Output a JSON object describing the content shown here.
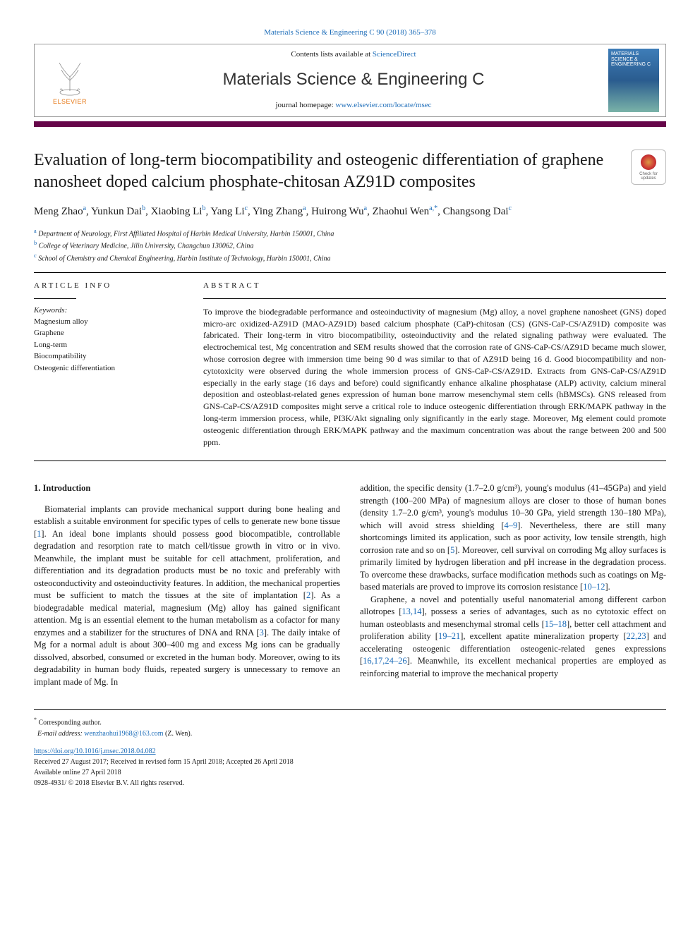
{
  "header": {
    "running_head": "Materials Science & Engineering C 90 (2018) 365–378",
    "contents_prefix": "Contents lists available at ",
    "contents_link": "ScienceDirect",
    "journal_name": "Materials Science & Engineering C",
    "homepage_prefix": "journal homepage: ",
    "homepage_link": "www.elsevier.com/locate/msec",
    "publisher_label": "ELSEVIER",
    "cover_text": "MATERIALS SCIENCE & ENGINEERING C",
    "brand_bar_color": "#66064a"
  },
  "check_updates": {
    "label": "Check for updates"
  },
  "title": "Evaluation of long-term biocompatibility and osteogenic differentiation of graphene nanosheet doped calcium phosphate-chitosan AZ91D composites",
  "authors_html": "Meng Zhao<sup>a</sup>, Yunkun Dai<sup>b</sup>, Xiaobing Li<sup>b</sup>, Yang Li<sup>c</sup>, Ying Zhang<sup>a</sup>, Huirong Wu<sup>a</sup>, Zhaohui Wen<sup>a,*</sup>, Changsong Dai<sup>c</sup>",
  "affiliations": [
    {
      "sup": "a",
      "text": "Department of Neurology, First Affiliated Hospital of Harbin Medical University, Harbin 150001, China"
    },
    {
      "sup": "b",
      "text": "College of Veterinary Medicine, Jilin University, Changchun 130062, China"
    },
    {
      "sup": "c",
      "text": "School of Chemistry and Chemical Engineering, Harbin Institute of Technology, Harbin 150001, China"
    }
  ],
  "article_info_head": "ARTICLE INFO",
  "abstract_head": "ABSTRACT",
  "keywords_label": "Keywords:",
  "keywords": [
    "Magnesium alloy",
    "Graphene",
    "Long-term",
    "Biocompatibility",
    "Osteogenic differentiation"
  ],
  "abstract_text": "To improve the biodegradable performance and osteoinductivity of magnesium (Mg) alloy, a novel graphene nanosheet (GNS) doped micro-arc oxidized-AZ91D (MAO-AZ91D) based calcium phosphate (CaP)-chitosan (CS) (GNS-CaP-CS/AZ91D) composite was fabricated. Their long-term in vitro biocompatibility, osteoinductivity and the related signaling pathway were evaluated. The electrochemical test, Mg concentration and SEM results showed that the corrosion rate of GNS-CaP-CS/AZ91D became much slower, whose corrosion degree with immersion time being 90 d was similar to that of AZ91D being 16 d. Good biocompatibility and non-cytotoxicity were observed during the whole immersion process of GNS-CaP-CS/AZ91D. Extracts from GNS-CaP-CS/AZ91D especially in the early stage (16 days and before) could significantly enhance alkaline phosphatase (ALP) activity, calcium mineral deposition and osteoblast-related genes expression of human bone marrow mesenchymal stem cells (hBMSCs). GNS released from GNS-CaP-CS/AZ91D composites might serve a critical role to induce osteogenic differentiation through ERK/MAPK pathway in the long-term immersion process, while, PI3K/Akt signaling only significantly in the early stage. Moreover, Mg element could promote osteogenic differentiation through ERK/MAPK pathway and the maximum concentration was about the range between 200 and 500 ppm.",
  "intro_head": "1. Introduction",
  "intro_p1": "Biomaterial implants can provide mechanical support during bone healing and establish a suitable environment for specific types of cells to generate new bone tissue [1]. An ideal bone implants should possess good biocompatible, controllable degradation and resorption rate to match cell/tissue growth in vitro or in vivo. Meanwhile, the implant must be suitable for cell attachment, proliferation, and differentiation and its degradation products must be no toxic and preferably with osteoconductivity and osteoinductivity features. In addition, the mechanical properties must be sufficient to match the tissues at the site of implantation [2]. As a biodegradable medical material, magnesium (Mg) alloy has gained significant attention. Mg is an essential element to the human metabolism as a cofactor for many enzymes and a stabilizer for the structures of DNA and RNA [3]. The daily intake of Mg for a normal adult is about 300–400 mg and excess Mg ions can be gradually dissolved, absorbed, consumed or excreted in the human body. Moreover, owing to its degradability in human body fluids, repeated surgery is unnecessary to remove an implant made of Mg. In",
  "intro_p2": "addition, the specific density (1.7–2.0 g/cm³), young's modulus (41–45GPa) and yield strength (100–200 MPa) of magnesium alloys are closer to those of human bones (density 1.7–2.0 g/cm³, young's modulus 10–30 GPa, yield strength 130–180 MPa), which will avoid stress shielding [4–9]. Nevertheless, there are still many shortcomings limited its application, such as poor activity, low tensile strength, high corrosion rate and so on [5]. Moreover, cell survival on corroding Mg alloy surfaces is primarily limited by hydrogen liberation and pH increase in the degradation process. To overcome these drawbacks, surface modification methods such as coatings on Mg-based materials are proved to improve its corrosion resistance [10–12].",
  "intro_p3": "Graphene, a novel and potentially useful nanomaterial among different carbon allotropes [13,14], possess a series of advantages, such as no cytotoxic effect on human osteoblasts and mesenchymal stromal cells [15–18], better cell attachment and proliferation ability [19–21], excellent apatite mineralization property [22,23] and accelerating osteogenic differentiation osteogenic-related genes expressions [16,17,24–26]. Meanwhile, its excellent mechanical properties are employed as reinforcing material to improve the mechanical property",
  "footer": {
    "corresponding": "Corresponding author.",
    "email_label": "E-mail address:",
    "email": "wenzhaohui1968@163.com",
    "email_suffix": "(Z. Wen).",
    "doi": "https://doi.org/10.1016/j.msec.2018.04.082",
    "received": "Received 27 August 2017; Received in revised form 15 April 2018; Accepted 26 April 2018",
    "available": "Available online 27 April 2018",
    "copyright": "0928-4931/ © 2018 Elsevier B.V. All rights reserved."
  },
  "colors": {
    "link": "#1a6bb8",
    "elsevier_orange": "#e67817",
    "text": "#1a1a1a"
  }
}
